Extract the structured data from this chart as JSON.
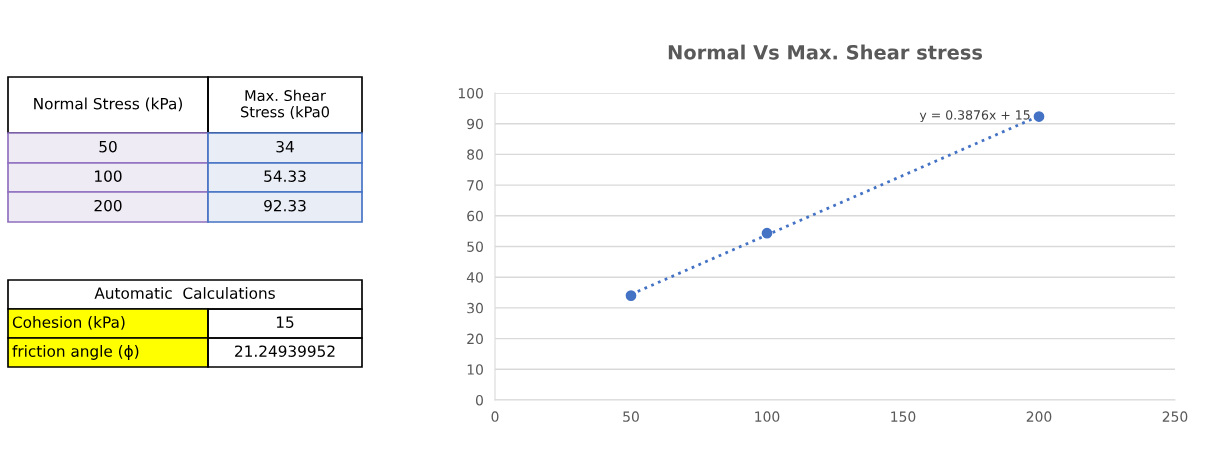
{
  "chart_data": {
    "type": "scatter",
    "title": "Normal Vs Max. Shear stress",
    "x": [
      50,
      100,
      200
    ],
    "series": [
      {
        "color": "#4472c4",
        "values": [
          34,
          54.33,
          92.33
        ],
        "marker": "circle"
      },
      {
        "type": "line",
        "color": "#4472c4",
        "x": [
          50,
          200
        ],
        "values": [
          34.4,
          92.5
        ],
        "line_style": "dotted",
        "marker": "none"
      }
    ],
    "xlim": [
      0,
      250
    ],
    "xticks": [
      0,
      50,
      100,
      150,
      200,
      250
    ],
    "ylim": [
      0,
      100
    ],
    "yticks": [
      0,
      10,
      20,
      30,
      40,
      50,
      60,
      70,
      80,
      90,
      100
    ],
    "grid": "y",
    "annotations": [
      "Normal Stress (kPa)",
      "Max. Shear\nStress (kPa0",
      "50",
      "34",
      "100",
      "54.33",
      "200",
      "92.33",
      "Automatic  Calculations",
      "Cohesion (kPa)",
      "15",
      "friction angle (ϕ)",
      "21.24939952",
      {
        "text": "y = 0.3876x + 15",
        "x": 200,
        "y": 92.5
      }
    ]
  }
}
